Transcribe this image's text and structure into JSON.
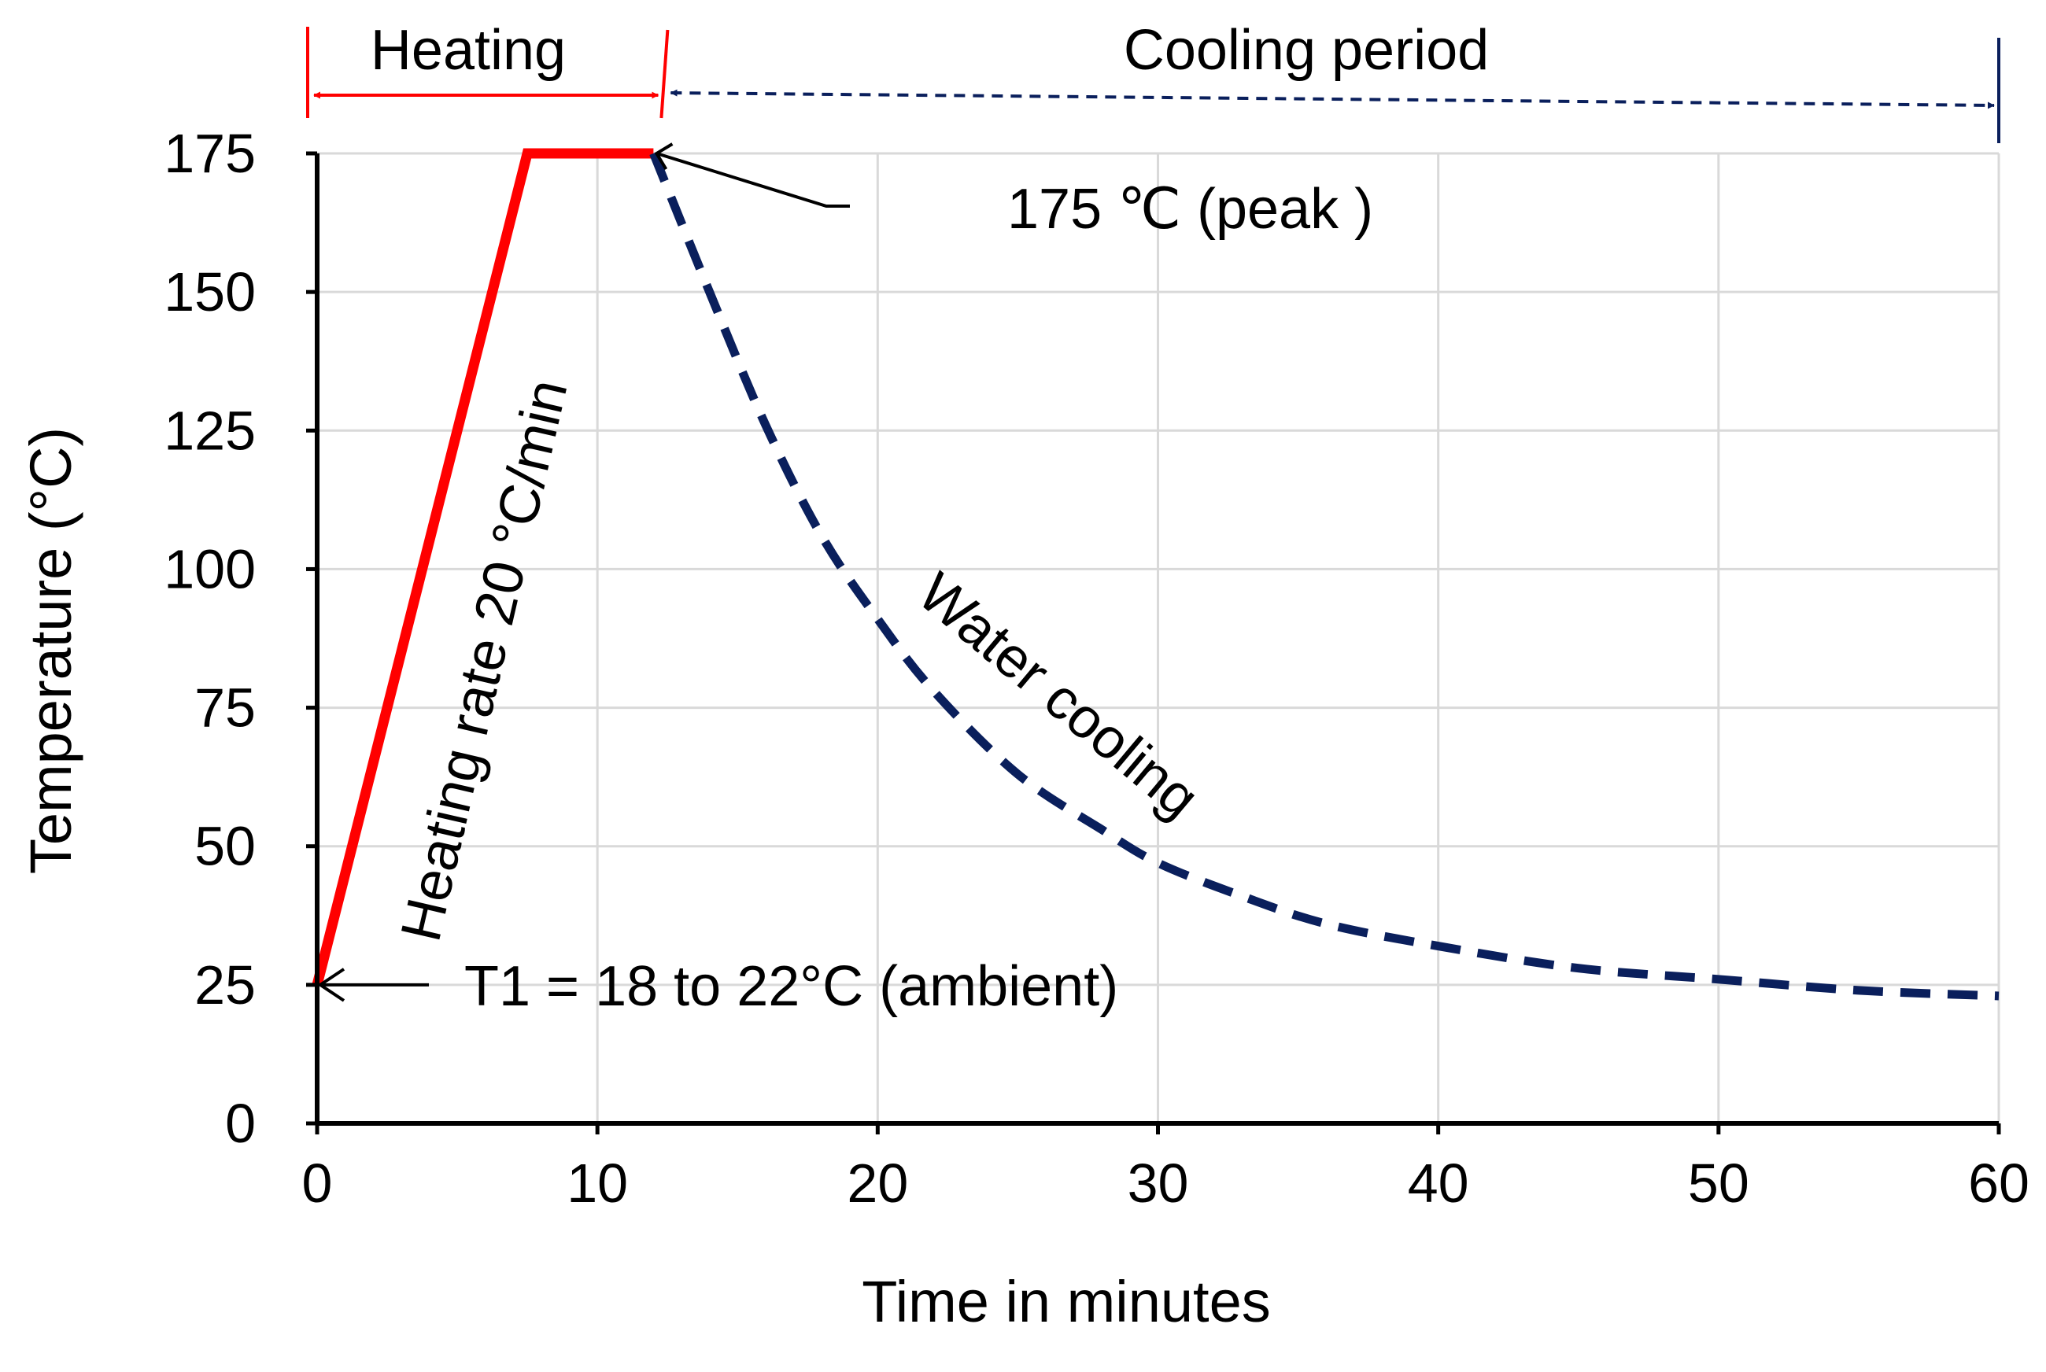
{
  "chart_data": {
    "type": "line",
    "xlabel": "Time in minutes",
    "ylabel": "Temperature (°C)",
    "xlim": [
      0,
      60
    ],
    "ylim": [
      0,
      175
    ],
    "xticks": [
      0,
      10,
      20,
      30,
      40,
      50,
      60
    ],
    "yticks": [
      0,
      25,
      50,
      75,
      100,
      125,
      150,
      175
    ],
    "grid": true,
    "series": [
      {
        "color": "#ff0000",
        "style": "solid",
        "x": [
          0,
          7.5,
          12
        ],
        "y": [
          25,
          175,
          175
        ]
      },
      {
        "color": "#0a1f5c",
        "style": "dashed",
        "x": [
          12,
          14,
          16,
          18,
          20,
          22,
          25,
          28,
          30,
          33,
          36,
          40,
          45,
          50,
          55,
          60
        ],
        "y": [
          175,
          150,
          126,
          106,
          91,
          78,
          63,
          53,
          47,
          41,
          36,
          32,
          28,
          26,
          24,
          23
        ]
      }
    ],
    "annotations": {
      "heating": "Heating",
      "cooling_period": "Cooling period",
      "peak": "175 ℃ (peak )",
      "heating_rate": "Heating rate 20 °C/min",
      "water_cooling": "Water cooling",
      "ambient": "T1 = 18 to 22°C (ambient)"
    },
    "colors": {
      "heating": "#ff0000",
      "cooling": "#0a1f5c",
      "grid": "#d9d9d9",
      "axis": "#000000"
    }
  }
}
